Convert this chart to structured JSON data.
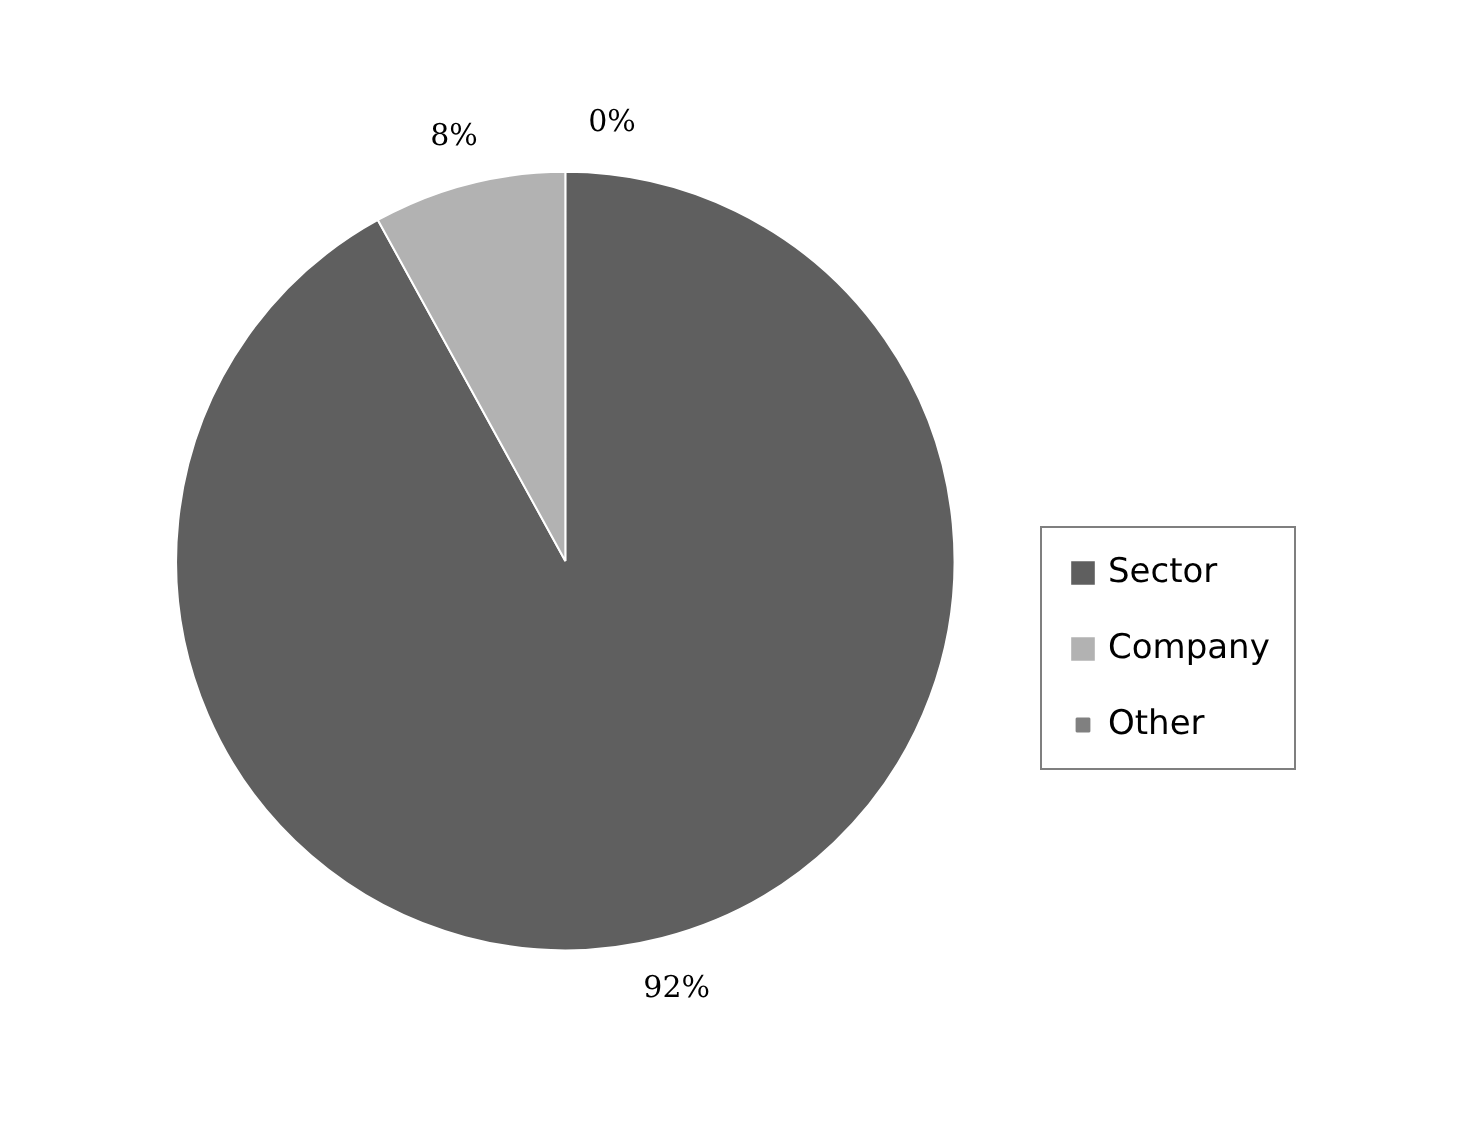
{
  "chart_data": {
    "type": "pie",
    "categories": [
      "Sector",
      "Company",
      "Other"
    ],
    "values": [
      92,
      8,
      0
    ],
    "colors": [
      "#5f5f5f",
      "#b2b2b2",
      "#808080"
    ],
    "value_labels": [
      "92%",
      "8%",
      "0%"
    ],
    "legend": "right"
  }
}
